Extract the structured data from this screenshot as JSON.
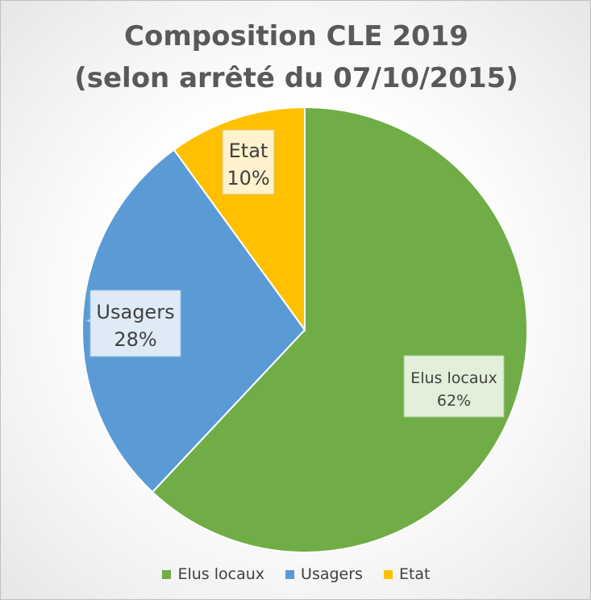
{
  "chart_data": {
    "type": "pie",
    "title_lines": [
      "Composition CLE 2019",
      "(selon arrêté du 07/10/2015)"
    ],
    "slices": [
      {
        "name": "Elus locaux",
        "value": 62,
        "label": "62%",
        "color": "#70ad47",
        "label_fill": "#e2efd9",
        "label_stroke": "#a9c89a"
      },
      {
        "name": "Usagers",
        "value": 28,
        "label": "28%",
        "color": "#5b9bd5",
        "label_fill": "#deebf7",
        "label_stroke": "#9dc3e6"
      },
      {
        "name": "Etat",
        "value": 10,
        "label": "10%",
        "color": "#ffc000",
        "label_fill": "#fff2cc",
        "label_stroke": "#e6c36a"
      }
    ],
    "legend_position": "bottom",
    "start_angle": "12 o'clock",
    "direction": "clockwise"
  }
}
